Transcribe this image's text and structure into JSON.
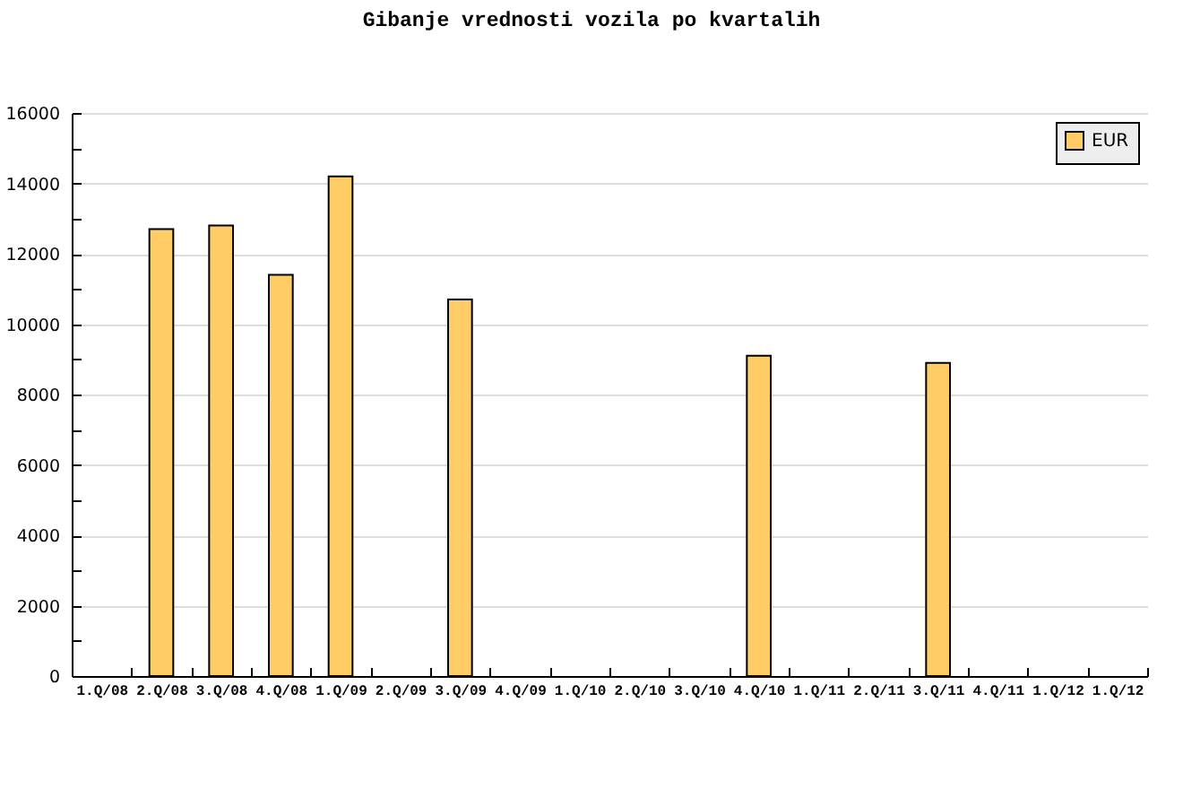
{
  "chart_data": {
    "type": "bar",
    "title": "Gibanje vrednosti vozila po kvartalih",
    "categories": [
      "1.Q/08",
      "2.Q/08",
      "3.Q/08",
      "4.Q/08",
      "1.Q/09",
      "2.Q/09",
      "3.Q/09",
      "4.Q/09",
      "1.Q/10",
      "2.Q/10",
      "3.Q/10",
      "4.Q/10",
      "1.Q/11",
      "2.Q/11",
      "3.Q/11",
      "4.Q/11",
      "1.Q/12",
      "1.Q/12"
    ],
    "series": [
      {
        "name": "EUR",
        "color": "#ffcc66",
        "values": [
          null,
          12700,
          12800,
          11400,
          14200,
          null,
          10700,
          null,
          null,
          null,
          null,
          9100,
          null,
          null,
          8900,
          null,
          null,
          null
        ]
      }
    ],
    "ylim": [
      0,
      16000
    ],
    "yticks": [
      0,
      {
        "value": 1000,
        "label": null
      },
      2000,
      {
        "value": 3000,
        "label": null
      },
      4000,
      {
        "value": 5000,
        "label": null
      },
      6000,
      {
        "value": 7000,
        "label": null
      },
      8000,
      {
        "value": 9000,
        "label": null
      },
      10000,
      {
        "value": 11000,
        "label": null
      },
      12000,
      {
        "value": 13000,
        "label": null
      },
      14000,
      {
        "value": 15000,
        "label": null
      },
      16000
    ],
    "grid": "y",
    "legend": "top right"
  }
}
